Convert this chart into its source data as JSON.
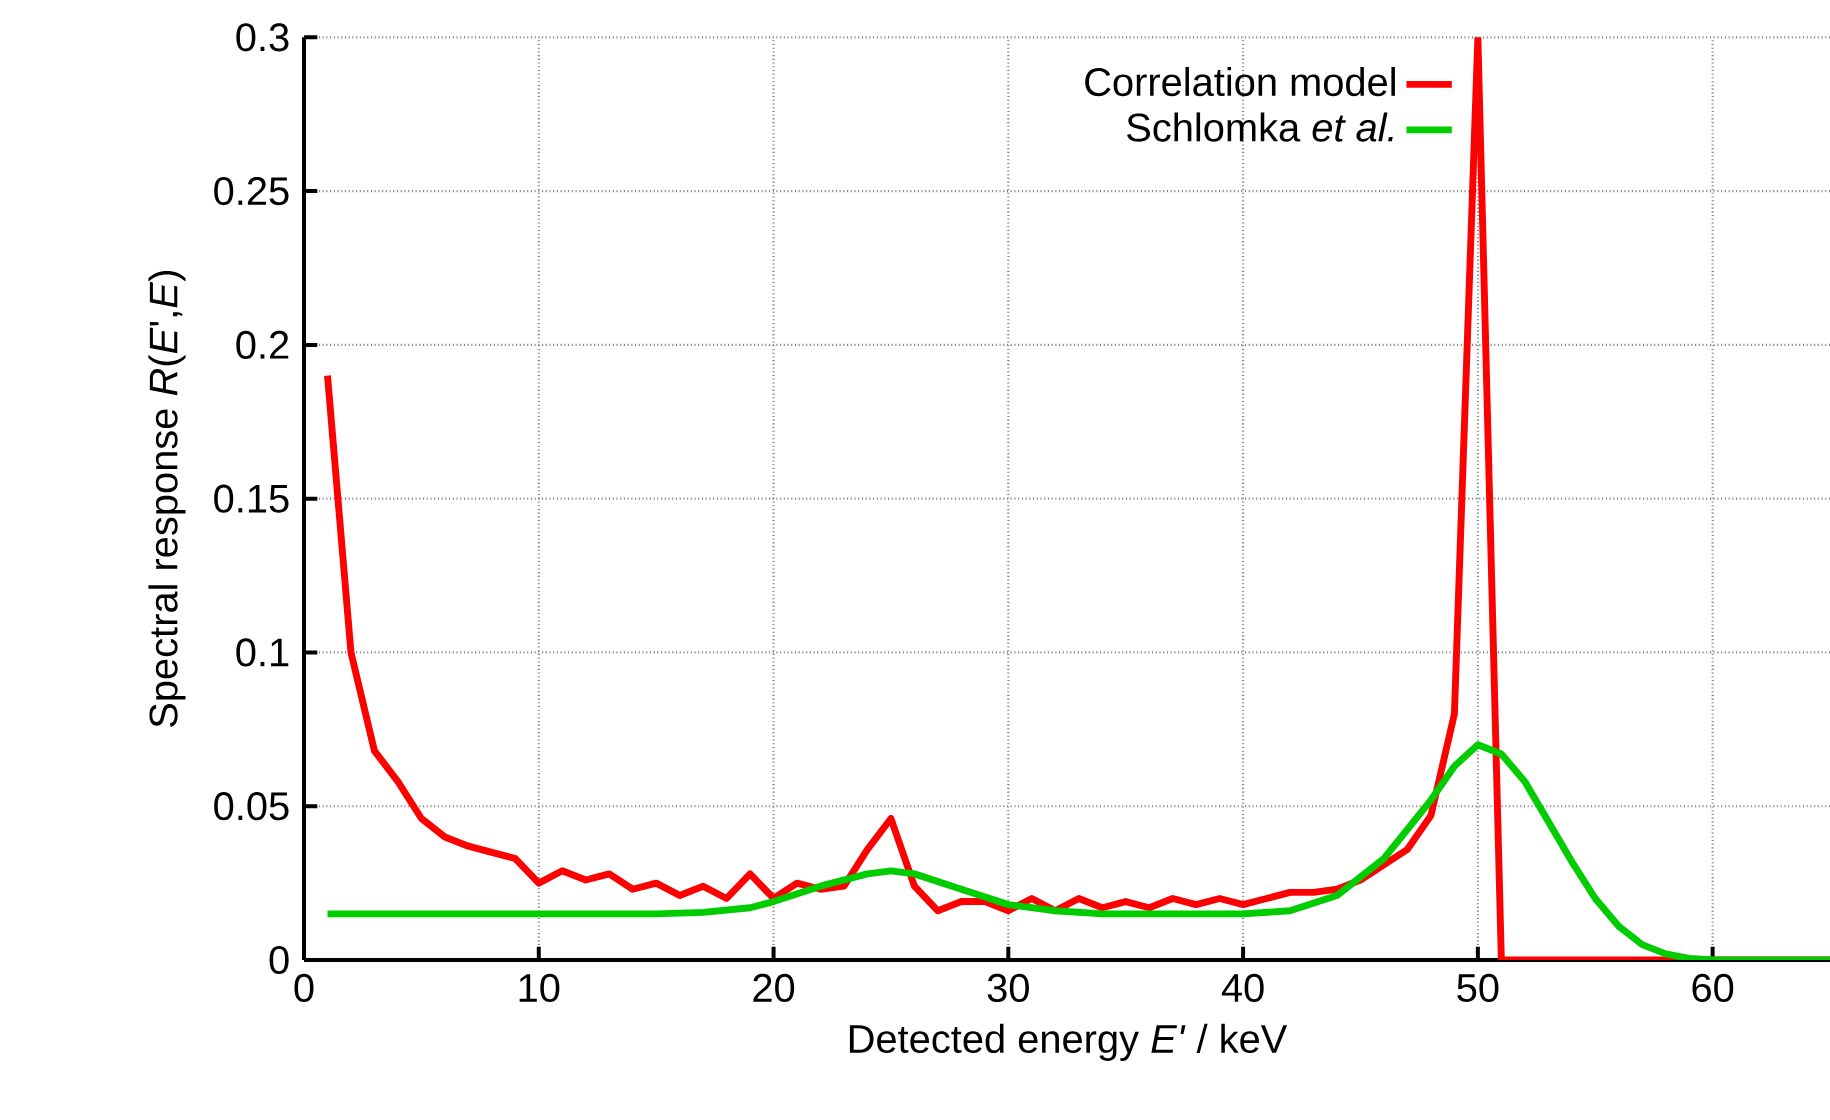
{
  "chart_data": {
    "type": "line",
    "xlabel": "Detected energy *E'* / keV",
    "ylabel": "Spectral response *R*(*E*',*E*)",
    "xlim": [
      0,
      65
    ],
    "ylim": [
      0,
      0.3
    ],
    "xticks": [
      0,
      10,
      20,
      30,
      40,
      50,
      60
    ],
    "yticks": [
      0,
      0.05,
      0.1,
      0.15,
      0.2,
      0.25,
      0.3
    ],
    "grid": true,
    "legend": "top right",
    "marker": "none",
    "line_style": "solid",
    "series": [
      {
        "name": "Correlation model",
        "color": "#ff0000",
        "x": [
          1,
          2,
          3,
          4,
          5,
          6,
          7,
          8,
          9,
          10,
          11,
          12,
          13,
          14,
          15,
          16,
          17,
          18,
          19,
          20,
          21,
          22,
          23,
          24,
          25,
          26,
          27,
          28,
          29,
          30,
          31,
          32,
          33,
          34,
          35,
          36,
          37,
          38,
          39,
          40,
          41,
          42,
          43,
          44,
          45,
          46,
          47,
          48,
          49,
          50,
          51,
          52,
          55,
          60,
          65
        ],
        "values": [
          0.19,
          0.1,
          0.068,
          0.058,
          0.046,
          0.04,
          0.037,
          0.035,
          0.033,
          0.025,
          0.029,
          0.026,
          0.028,
          0.023,
          0.025,
          0.021,
          0.024,
          0.02,
          0.028,
          0.02,
          0.025,
          0.023,
          0.024,
          0.036,
          0.046,
          0.024,
          0.016,
          0.019,
          0.019,
          0.016,
          0.02,
          0.016,
          0.02,
          0.017,
          0.019,
          0.017,
          0.02,
          0.018,
          0.02,
          0.018,
          0.02,
          0.022,
          0.022,
          0.023,
          0.026,
          0.031,
          0.036,
          0.047,
          0.08,
          0.3,
          0,
          0,
          0,
          0,
          0
        ]
      },
      {
        "name": "Schlomka *et al.*",
        "color": "#00cc00",
        "x": [
          1,
          5,
          10,
          15,
          17,
          19,
          20,
          22,
          24,
          25,
          26,
          28,
          30,
          32,
          34,
          36,
          40,
          42,
          44,
          46,
          48,
          49,
          50,
          51,
          52,
          53,
          54,
          55,
          56,
          57,
          58,
          59,
          60,
          65
        ],
        "values": [
          0.015,
          0.015,
          0.015,
          0.015,
          0.0155,
          0.017,
          0.019,
          0.024,
          0.028,
          0.029,
          0.028,
          0.023,
          0.018,
          0.016,
          0.015,
          0.015,
          0.015,
          0.016,
          0.021,
          0.033,
          0.052,
          0.063,
          0.07,
          0.067,
          0.058,
          0.045,
          0.032,
          0.02,
          0.011,
          0.005,
          0.002,
          0.0005,
          0,
          0
        ]
      }
    ]
  }
}
